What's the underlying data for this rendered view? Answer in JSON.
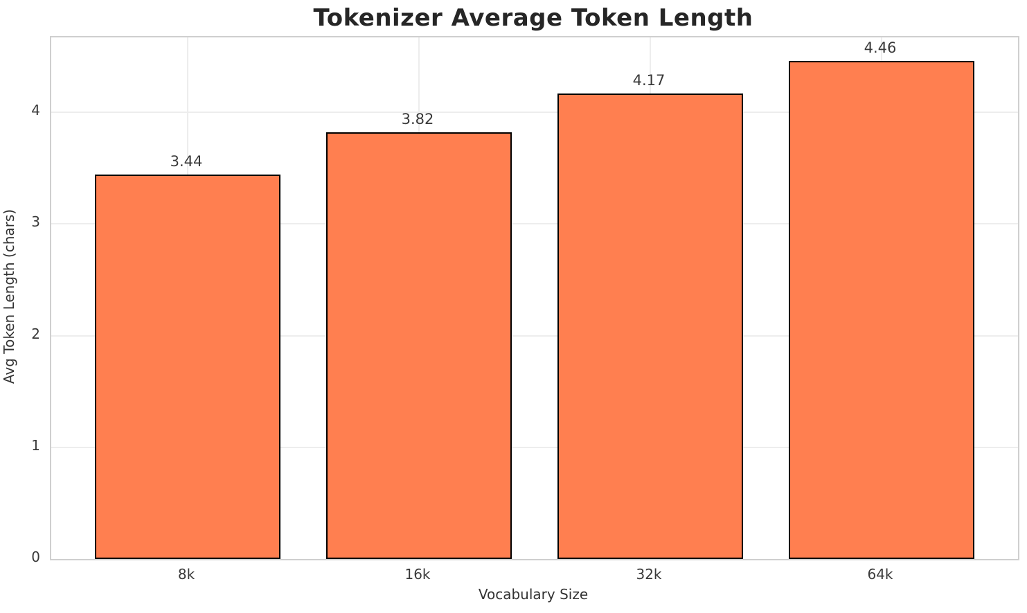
{
  "chart_data": {
    "type": "bar",
    "title": "Tokenizer Average Token Length",
    "xlabel": "Vocabulary Size",
    "ylabel": "Avg Token Length (chars)",
    "categories": [
      "8k",
      "16k",
      "32k",
      "64k"
    ],
    "values": [
      3.44,
      3.82,
      4.17,
      4.46
    ],
    "value_labels": [
      "3.44",
      "3.82",
      "4.17",
      "4.46"
    ],
    "yticks": [
      0,
      1,
      2,
      3,
      4
    ],
    "ylim": [
      0,
      4.67
    ],
    "grid": "on",
    "legend": "none",
    "bar_color": "#FF7F50",
    "bar_edge_color": "#000000",
    "spine_color": "#cfcfcf",
    "grid_color": "#ededed",
    "title_color": "#262626",
    "tick_label_color": "#3a3a3a"
  }
}
